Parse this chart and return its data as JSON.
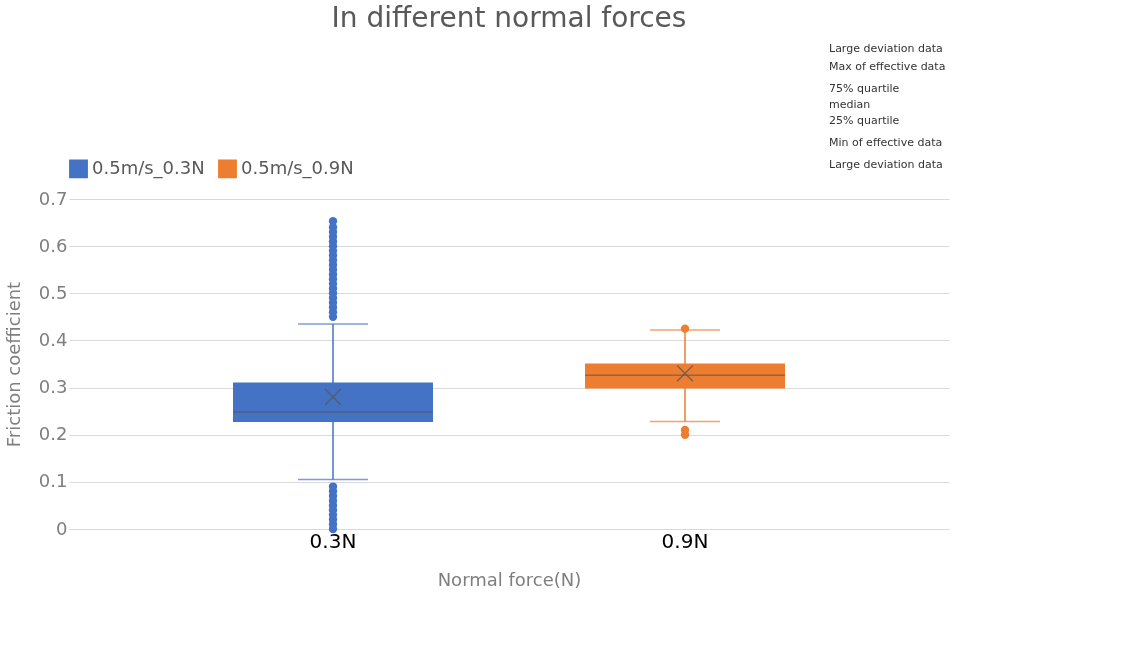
{
  "chart_data": {
    "type": "box",
    "title": "In different normal forces",
    "xlabel": "Normal force(N)",
    "ylabel": "Friction coefficient",
    "categories": [
      "0.3N",
      "0.9N"
    ],
    "series": [
      {
        "name": "0.5m/s_0.3N",
        "color": "#4472c4",
        "boxes": [
          {
            "low": 0.105,
            "q1": 0.227,
            "median": 0.248,
            "q3": 0.311,
            "high": 0.435,
            "mean": 0.28,
            "outliers": [
              0.45,
              0.46,
              0.47,
              0.48,
              0.49,
              0.5,
              0.51,
              0.52,
              0.53,
              0.54,
              0.55,
              0.56,
              0.57,
              0.58,
              0.59,
              0.6,
              0.61,
              0.62,
              0.63,
              0.64,
              0.653,
              0.09,
              0.08,
              0.07,
              0.06,
              0.05,
              0.04,
              0.03,
              0.02,
              0.01,
              0.0
            ]
          },
          null
        ]
      },
      {
        "name": "0.5m/s_0.9N",
        "color": "#ed7d31",
        "boxes": [
          null,
          {
            "low": 0.228,
            "q1": 0.298,
            "median": 0.326,
            "q3": 0.351,
            "high": 0.422,
            "mean": 0.33,
            "outliers": [
              0.425,
              0.21,
              0.2
            ]
          }
        ]
      }
    ],
    "ylim": [
      0,
      0.7
    ],
    "yticks": [
      0,
      0.1,
      0.2,
      0.3,
      0.4,
      0.5,
      0.6,
      0.7
    ],
    "grid": "y",
    "legend": "top",
    "annotations": [
      "Large deviation data",
      "Max of effective data",
      "75% quartile",
      "median",
      "25% quartile",
      "Min of effective data",
      "Large deviation data"
    ]
  }
}
